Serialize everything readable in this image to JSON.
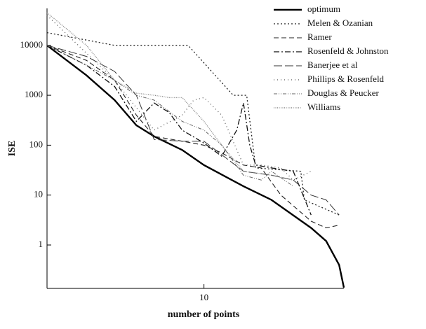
{
  "chart_data": {
    "type": "line",
    "x_label": "number of points",
    "y_label": "ISE",
    "xscale": "log",
    "yscale": "log",
    "xlim": [
      2,
      42
    ],
    "ylim": [
      0.135,
      55000
    ],
    "xticks": [
      10
    ],
    "yticks": [
      1,
      10,
      100,
      1000,
      10000
    ],
    "legend": "top-right",
    "grid": false,
    "series": [
      {
        "name": "optimum",
        "color": "#000000",
        "dash": "",
        "width": 2.4,
        "x": [
          2,
          3,
          4,
          5,
          6,
          8,
          10,
          15,
          20,
          30,
          35,
          40,
          42
        ],
        "values": [
          10000,
          2500,
          800,
          250,
          150,
          80,
          40,
          15,
          8,
          2.2,
          1.2,
          0.4,
          0.14
        ]
      },
      {
        "name": "Melen & Ozanian",
        "color": "#222222",
        "dash": "2 3",
        "width": 1.3,
        "x": [
          2,
          4,
          8.5,
          13.5,
          15.5,
          17,
          27,
          28,
          40
        ],
        "values": [
          18000,
          10000,
          10000,
          1000,
          1000,
          35,
          30,
          8,
          4
        ]
      },
      {
        "name": "Ramer",
        "color": "#222222",
        "dash": "7 4",
        "width": 1.1,
        "x": [
          2,
          3,
          4,
          5,
          6,
          8,
          10,
          12,
          15,
          18,
          22,
          30,
          35,
          40
        ],
        "values": [
          10000,
          5000,
          2000,
          400,
          150,
          120,
          100,
          70,
          40,
          35,
          10,
          3,
          2.2,
          2.5
        ]
      },
      {
        "name": "Rosenfeld & Johnston",
        "color": "#111111",
        "dash": "8 3 2 3",
        "width": 1.3,
        "x": [
          2,
          3,
          4,
          5,
          6,
          7,
          8,
          10,
          12,
          14,
          15,
          16,
          17,
          20,
          25,
          30
        ],
        "values": [
          10000,
          4000,
          1500,
          300,
          700,
          450,
          200,
          110,
          60,
          200,
          700,
          100,
          40,
          35,
          30,
          4
        ]
      },
      {
        "name": "Banerjee et al",
        "color": "#333333",
        "dash": "12 4",
        "width": 1,
        "x": [
          2,
          3,
          4,
          5,
          6,
          8,
          10,
          15,
          20,
          25,
          30,
          35,
          40
        ],
        "values": [
          10000,
          6000,
          3000,
          1000,
          130,
          120,
          120,
          30,
          25,
          20,
          10,
          8,
          4
        ]
      },
      {
        "name": "Phillips & Rosenfeld",
        "color": "#555555",
        "dash": "1 4",
        "width": 1.3,
        "x": [
          2,
          4,
          6,
          8,
          9,
          10,
          12,
          15,
          18,
          22,
          25,
          30
        ],
        "values": [
          40000,
          2000,
          200,
          400,
          800,
          900,
          400,
          40,
          40,
          35,
          20,
          30
        ]
      },
      {
        "name": "Douglas & Peucker",
        "color": "#666666",
        "dash": "5 2 1 2 1 2",
        "width": 1,
        "x": [
          2,
          3,
          4,
          5,
          6,
          8,
          10,
          12,
          15,
          18,
          20,
          25
        ],
        "values": [
          10000,
          4000,
          2000,
          1000,
          800,
          300,
          200,
          100,
          25,
          20,
          30,
          15
        ]
      },
      {
        "name": "Williams",
        "color": "#888888",
        "dash": "1 1.5",
        "width": 1.4,
        "x": [
          2,
          3,
          4,
          5,
          6,
          7,
          8,
          10,
          12,
          15,
          20,
          25
        ],
        "values": [
          45000,
          10000,
          2000,
          1100,
          1000,
          900,
          900,
          300,
          100,
          30,
          25,
          20
        ]
      }
    ]
  }
}
